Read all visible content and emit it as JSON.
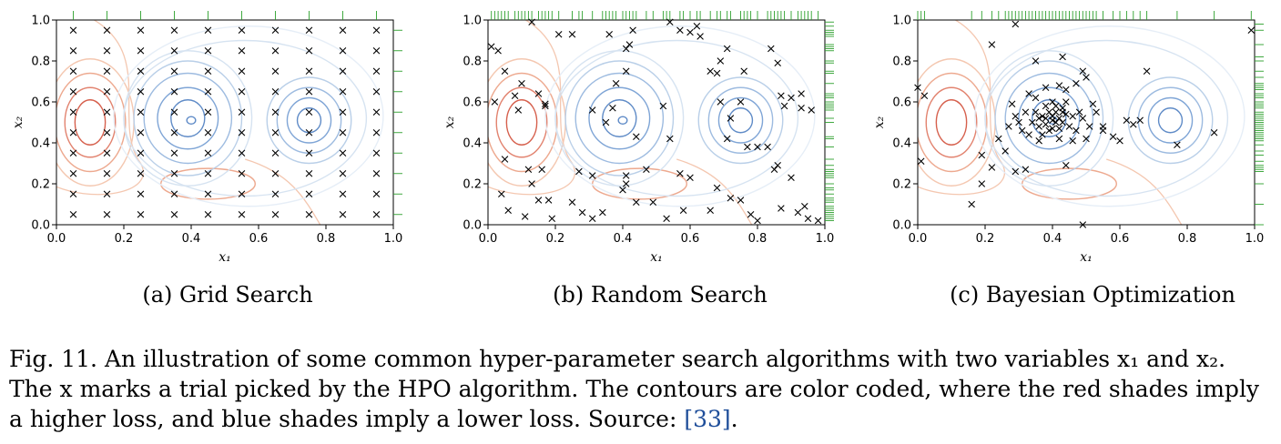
{
  "figure": {
    "caption_line1": "Fig. 11.  An illustration of some common hyper-parameter search algorithms with two variables x₁ and x₂.",
    "caption_line2": "The x marks a trial picked by the HPO algorithm. The contours are color coded, where the red shades imply",
    "caption_line3": "a higher loss, and blue shades imply a lower loss. Source: ",
    "caption_ref": "[33]",
    "caption_end": "."
  },
  "colors": {
    "high_loss": "#d6604d",
    "low_loss": "#4575b4",
    "marginal_rug": "#2ca02c",
    "marker": "#000000"
  },
  "chart_data": [
    {
      "type": "scatter",
      "subcaption": "(a) Grid Search",
      "xlabel": "x₁",
      "ylabel": "x₂",
      "xlim": [
        0,
        1
      ],
      "ylim": [
        0,
        1
      ],
      "xticks": [
        "0.0",
        "0.2",
        "0.4",
        "0.6",
        "0.8",
        "1.0"
      ],
      "yticks": [
        "0.0",
        "0.2",
        "0.4",
        "0.6",
        "0.8",
        "1.0"
      ],
      "grid": false,
      "points_grid": {
        "x": [
          0.05,
          0.15,
          0.25,
          0.35,
          0.45,
          0.55,
          0.65,
          0.75,
          0.85,
          0.95
        ],
        "y": [
          0.05,
          0.15,
          0.25,
          0.35,
          0.45,
          0.55,
          0.65,
          0.75,
          0.85,
          0.95
        ]
      }
    },
    {
      "type": "scatter",
      "subcaption": "(b) Random Search",
      "xlabel": "x₁",
      "ylabel": "x₂",
      "xlim": [
        0,
        1
      ],
      "ylim": [
        0,
        1
      ],
      "xticks": [
        "0.0",
        "0.2",
        "0.4",
        "0.6",
        "0.8",
        "1.0"
      ],
      "yticks": [
        "0.0",
        "0.2",
        "0.4",
        "0.6",
        "0.8",
        "1.0"
      ],
      "grid": false,
      "points": [
        [
          0.13,
          0.99
        ],
        [
          0.21,
          0.93
        ],
        [
          0.25,
          0.93
        ],
        [
          0.36,
          0.93
        ],
        [
          0.43,
          0.95
        ],
        [
          0.54,
          0.99
        ],
        [
          0.57,
          0.95
        ],
        [
          0.6,
          0.94
        ],
        [
          0.62,
          0.97
        ],
        [
          0.63,
          0.92
        ],
        [
          0.01,
          0.87
        ],
        [
          0.03,
          0.85
        ],
        [
          0.05,
          0.75
        ],
        [
          0.1,
          0.69
        ],
        [
          0.15,
          0.64
        ],
        [
          0.17,
          0.58
        ],
        [
          0.17,
          0.59
        ],
        [
          0.02,
          0.6
        ],
        [
          0.08,
          0.63
        ],
        [
          0.09,
          0.56
        ],
        [
          0.42,
          0.88
        ],
        [
          0.41,
          0.86
        ],
        [
          0.41,
          0.75
        ],
        [
          0.38,
          0.69
        ],
        [
          0.35,
          0.5
        ],
        [
          0.31,
          0.56
        ],
        [
          0.37,
          0.57
        ],
        [
          0.52,
          0.58
        ],
        [
          0.54,
          0.42
        ],
        [
          0.44,
          0.43
        ],
        [
          0.66,
          0.75
        ],
        [
          0.71,
          0.86
        ],
        [
          0.69,
          0.8
        ],
        [
          0.68,
          0.74
        ],
        [
          0.76,
          0.75
        ],
        [
          0.72,
          0.52
        ],
        [
          0.69,
          0.6
        ],
        [
          0.75,
          0.6
        ],
        [
          0.84,
          0.86
        ],
        [
          0.86,
          0.79
        ],
        [
          0.87,
          0.63
        ],
        [
          0.88,
          0.58
        ],
        [
          0.9,
          0.62
        ],
        [
          0.93,
          0.64
        ],
        [
          0.93,
          0.57
        ],
        [
          0.96,
          0.56
        ],
        [
          0.77,
          0.38
        ],
        [
          0.8,
          0.38
        ],
        [
          0.83,
          0.38
        ],
        [
          0.71,
          0.42
        ],
        [
          0.05,
          0.32
        ],
        [
          0.12,
          0.27
        ],
        [
          0.16,
          0.27
        ],
        [
          0.27,
          0.26
        ],
        [
          0.31,
          0.24
        ],
        [
          0.41,
          0.24
        ],
        [
          0.47,
          0.27
        ],
        [
          0.57,
          0.25
        ],
        [
          0.6,
          0.23
        ],
        [
          0.68,
          0.18
        ],
        [
          0.85,
          0.27
        ],
        [
          0.86,
          0.29
        ],
        [
          0.9,
          0.23
        ],
        [
          0.04,
          0.15
        ],
        [
          0.06,
          0.07
        ],
        [
          0.13,
          0.2
        ],
        [
          0.15,
          0.12
        ],
        [
          0.18,
          0.12
        ],
        [
          0.19,
          0.03
        ],
        [
          0.25,
          0.11
        ],
        [
          0.28,
          0.06
        ],
        [
          0.31,
          0.03
        ],
        [
          0.34,
          0.06
        ],
        [
          0.4,
          0.17
        ],
        [
          0.41,
          0.2
        ],
        [
          0.44,
          0.11
        ],
        [
          0.49,
          0.11
        ],
        [
          0.53,
          0.03
        ],
        [
          0.58,
          0.07
        ],
        [
          0.66,
          0.07
        ],
        [
          0.72,
          0.13
        ],
        [
          0.75,
          0.12
        ],
        [
          0.78,
          0.05
        ],
        [
          0.8,
          0.02
        ],
        [
          0.87,
          0.08
        ],
        [
          0.92,
          0.06
        ],
        [
          0.95,
          0.03
        ],
        [
          0.94,
          0.09
        ],
        [
          0.98,
          0.02
        ],
        [
          0.11,
          0.04
        ]
      ]
    },
    {
      "type": "scatter",
      "subcaption": "(c) Bayesian Optimization",
      "xlabel": "x₁",
      "ylabel": "x₂",
      "xlim": [
        0,
        1
      ],
      "ylim": [
        0,
        1
      ],
      "xticks": [
        "0.0",
        "0.2",
        "0.4",
        "0.6",
        "0.8",
        "1.0"
      ],
      "yticks": [
        "0.0",
        "0.2",
        "0.4",
        "0.6",
        "0.8",
        "1.0"
      ],
      "grid": false,
      "points": [
        [
          0.0,
          0.67
        ],
        [
          0.02,
          0.63
        ],
        [
          0.01,
          0.31
        ],
        [
          0.19,
          0.34
        ],
        [
          0.22,
          0.88
        ],
        [
          0.29,
          0.98
        ],
        [
          0.99,
          0.95
        ],
        [
          0.68,
          0.75
        ],
        [
          0.88,
          0.45
        ],
        [
          0.77,
          0.39
        ],
        [
          0.35,
          0.8
        ],
        [
          0.43,
          0.82
        ],
        [
          0.49,
          0.75
        ],
        [
          0.5,
          0.72
        ],
        [
          0.47,
          0.69
        ],
        [
          0.38,
          0.67
        ],
        [
          0.42,
          0.68
        ],
        [
          0.44,
          0.66
        ],
        [
          0.35,
          0.62
        ],
        [
          0.33,
          0.64
        ],
        [
          0.28,
          0.59
        ],
        [
          0.29,
          0.53
        ],
        [
          0.27,
          0.48
        ],
        [
          0.32,
          0.55
        ],
        [
          0.34,
          0.5
        ],
        [
          0.36,
          0.52
        ],
        [
          0.37,
          0.53
        ],
        [
          0.38,
          0.49
        ],
        [
          0.39,
          0.55
        ],
        [
          0.4,
          0.51
        ],
        [
          0.4,
          0.53
        ],
        [
          0.41,
          0.5
        ],
        [
          0.41,
          0.55
        ],
        [
          0.42,
          0.52
        ],
        [
          0.43,
          0.57
        ],
        [
          0.44,
          0.6
        ],
        [
          0.43,
          0.5
        ],
        [
          0.39,
          0.46
        ],
        [
          0.37,
          0.44
        ],
        [
          0.36,
          0.41
        ],
        [
          0.33,
          0.44
        ],
        [
          0.31,
          0.46
        ],
        [
          0.45,
          0.48
        ],
        [
          0.46,
          0.53
        ],
        [
          0.48,
          0.55
        ],
        [
          0.49,
          0.52
        ],
        [
          0.47,
          0.46
        ],
        [
          0.5,
          0.42
        ],
        [
          0.46,
          0.41
        ],
        [
          0.42,
          0.42
        ],
        [
          0.53,
          0.55
        ],
        [
          0.55,
          0.48
        ],
        [
          0.55,
          0.46
        ],
        [
          0.58,
          0.43
        ],
        [
          0.6,
          0.41
        ],
        [
          0.62,
          0.51
        ],
        [
          0.64,
          0.49
        ],
        [
          0.66,
          0.51
        ],
        [
          0.26,
          0.36
        ],
        [
          0.24,
          0.42
        ],
        [
          0.22,
          0.28
        ],
        [
          0.29,
          0.26
        ],
        [
          0.32,
          0.27
        ],
        [
          0.44,
          0.29
        ],
        [
          0.19,
          0.2
        ],
        [
          0.16,
          0.1
        ],
        [
          0.49,
          0.0
        ],
        [
          0.52,
          0.59
        ],
        [
          0.4,
          0.47
        ],
        [
          0.38,
          0.58
        ],
        [
          0.4,
          0.6
        ],
        [
          0.42,
          0.47
        ],
        [
          0.36,
          0.48
        ],
        [
          0.35,
          0.55
        ],
        [
          0.3,
          0.5
        ],
        [
          0.51,
          0.48
        ],
        [
          0.44,
          0.54
        ],
        [
          0.41,
          0.58
        ],
        [
          0.38,
          0.52
        ],
        [
          0.43,
          0.55
        ]
      ]
    }
  ]
}
